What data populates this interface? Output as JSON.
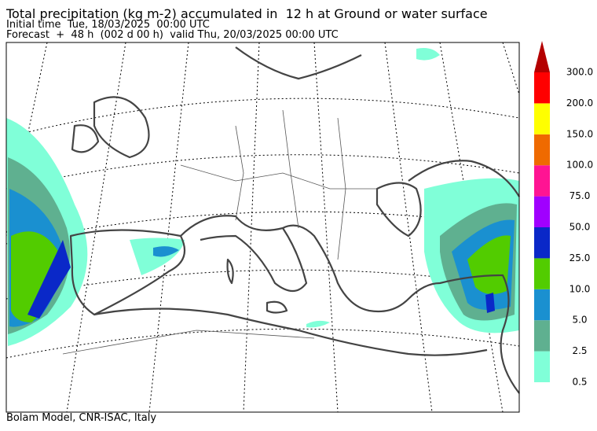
{
  "header": {
    "title": "Total precipitation (kg m-2) accumulated in  12 h at Ground or water surface",
    "initial_time": "Initial time  Tue, 18/03/2025  00:00 UTC",
    "forecast": "Forecast  +  48 h  (002 d 00 h)  valid Thu, 20/03/2025 00:00 UTC"
  },
  "colorbar": {
    "labels": [
      "0.5",
      "2.5",
      "5.0",
      "10.0",
      "25.0",
      "50.0",
      "75.0",
      "100.0",
      "150.0",
      "200.0",
      "300.0"
    ],
    "colors": [
      "#80ffd8",
      "#5fb090",
      "#1a90d0",
      "#52cc00",
      "#0a28c8",
      "#a000ff",
      "#ff1493",
      "#ef6a00",
      "#ffff00",
      "#ff0000",
      "#b40000"
    ]
  },
  "footer": "Bolam Model, CNR-ISAC, Italy"
}
